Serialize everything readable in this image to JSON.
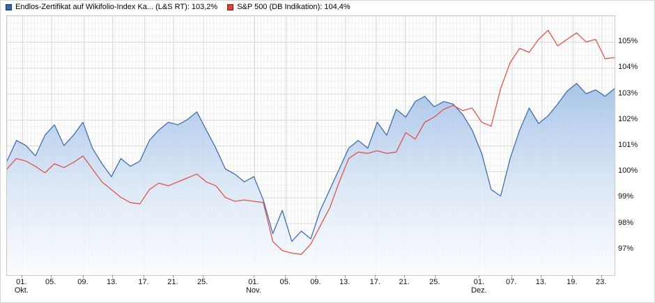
{
  "legend": {
    "items": [
      {
        "label": "Endlos-Zertifikat auf Wikifolio-Index Ka... (L&S RT): 103,2%",
        "color": "#3667a8",
        "border": "#0d2f63"
      },
      {
        "label": "S&P 500 (DB Indikation): 104,4%",
        "color": "#d5483c",
        "border": "#8a170e"
      }
    ]
  },
  "chart_data": {
    "type": "line",
    "ylim": [
      96,
      106
    ],
    "grid_color": "#dadada",
    "y_ticks": [
      {
        "v": 97,
        "label": "97%"
      },
      {
        "v": 98,
        "label": "98%"
      },
      {
        "v": 99,
        "label": "99%"
      },
      {
        "v": 100,
        "label": "100%"
      },
      {
        "v": 101,
        "label": "101%"
      },
      {
        "v": 102,
        "label": "102%"
      },
      {
        "v": 103,
        "label": "103%"
      },
      {
        "v": 104,
        "label": "104%"
      },
      {
        "v": 105,
        "label": "105%"
      }
    ],
    "x_ticks": [
      {
        "label": "01.",
        "month": "Okt.",
        "f": 0.025
      },
      {
        "label": "05.",
        "f": 0.073
      },
      {
        "label": "09.",
        "f": 0.126
      },
      {
        "label": "13.",
        "f": 0.174
      },
      {
        "label": "17.",
        "f": 0.226
      },
      {
        "label": "21.",
        "f": 0.274
      },
      {
        "label": "25.",
        "f": 0.323
      },
      {
        "label": "01.",
        "month": "Nov.",
        "f": 0.407
      },
      {
        "label": "05.",
        "f": 0.459
      },
      {
        "label": "09.",
        "f": 0.509
      },
      {
        "label": "13.",
        "f": 0.557
      },
      {
        "label": "17.",
        "f": 0.607
      },
      {
        "label": "21.",
        "f": 0.655
      },
      {
        "label": "25.",
        "f": 0.705
      },
      {
        "label": "01.",
        "month": "Dez.",
        "f": 0.778
      },
      {
        "label": "07.",
        "f": 0.831
      },
      {
        "label": "13.",
        "f": 0.88
      },
      {
        "label": "19.",
        "f": 0.931
      },
      {
        "label": "23.",
        "f": 0.979
      }
    ],
    "area_gradient": [
      {
        "offset": "0%",
        "color": "#9cbce6"
      },
      {
        "offset": "55%",
        "color": "#d9e6f6"
      },
      {
        "offset": "100%",
        "color": "#fbfdff"
      }
    ],
    "series": [
      {
        "name": "Endlos-Zertifikat auf Wikifolio-Index (L&S RT)",
        "last": "103,2%",
        "color": "#3f6fae",
        "fill": true,
        "fill_opacity": 0.85,
        "values": [
          100.4,
          101.2,
          101.0,
          100.6,
          101.4,
          101.8,
          101.0,
          101.4,
          101.9,
          100.9,
          100.3,
          99.8,
          100.5,
          100.2,
          100.4,
          101.2,
          101.6,
          101.9,
          101.8,
          102.0,
          102.3,
          101.6,
          100.9,
          100.1,
          99.9,
          99.6,
          99.8,
          98.9,
          97.6,
          98.5,
          97.3,
          97.7,
          97.4,
          98.5,
          99.3,
          100.1,
          100.9,
          101.2,
          100.9,
          101.9,
          101.4,
          102.4,
          102.1,
          102.7,
          102.9,
          102.5,
          102.7,
          102.6,
          102.2,
          101.6,
          100.7,
          99.3,
          99.05,
          100.5,
          101.6,
          102.45,
          101.85,
          102.15,
          102.6,
          103.1,
          103.4,
          103.0,
          103.15,
          102.9,
          103.2
        ]
      },
      {
        "name": "S&P 500 (DB Indikation)",
        "last": "104,4%",
        "color": "#dd544a",
        "fill": false,
        "values": [
          100.1,
          100.5,
          100.4,
          100.2,
          99.95,
          100.3,
          100.15,
          100.35,
          100.6,
          100.1,
          99.6,
          99.3,
          99.0,
          98.8,
          98.75,
          99.3,
          99.55,
          99.45,
          99.6,
          99.75,
          99.9,
          99.6,
          99.45,
          99.0,
          98.85,
          98.9,
          98.85,
          98.8,
          97.3,
          96.95,
          96.85,
          96.8,
          97.2,
          97.9,
          98.6,
          99.6,
          100.5,
          100.75,
          100.7,
          100.8,
          100.7,
          100.75,
          101.5,
          101.25,
          101.9,
          102.1,
          102.4,
          102.55,
          102.35,
          102.45,
          101.9,
          101.75,
          103.2,
          104.2,
          104.75,
          104.6,
          105.1,
          105.45,
          104.85,
          105.1,
          105.35,
          105.0,
          105.1,
          104.35,
          104.4
        ]
      }
    ]
  }
}
